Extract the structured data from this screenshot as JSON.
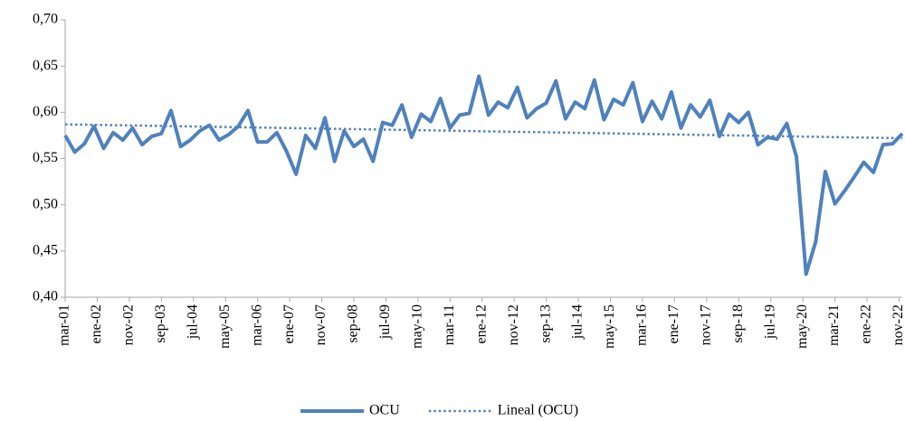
{
  "chart_data": {
    "type": "line",
    "ylim": [
      0.4,
      0.7
    ],
    "yticks": [
      {
        "value": 0.4,
        "label": "0,40"
      },
      {
        "value": 0.45,
        "label": "0,45"
      },
      {
        "value": 0.5,
        "label": "0,50"
      },
      {
        "value": 0.55,
        "label": "0,55"
      },
      {
        "value": 0.6,
        "label": "0,60"
      },
      {
        "value": 0.65,
        "label": "0,65"
      },
      {
        "value": 0.7,
        "label": "0,70"
      }
    ],
    "xlim": [
      "2001-03",
      "2022-12"
    ],
    "xticks": [
      {
        "value": "2001-03",
        "label": "mar-01"
      },
      {
        "value": "2002-01",
        "label": "ene-02"
      },
      {
        "value": "2002-11",
        "label": "nov-02"
      },
      {
        "value": "2003-09",
        "label": "sep-03"
      },
      {
        "value": "2004-07",
        "label": "jul-04"
      },
      {
        "value": "2005-05",
        "label": "may-05"
      },
      {
        "value": "2006-03",
        "label": "mar-06"
      },
      {
        "value": "2007-01",
        "label": "ene-07"
      },
      {
        "value": "2007-11",
        "label": "nov-07"
      },
      {
        "value": "2008-09",
        "label": "sep-08"
      },
      {
        "value": "2009-07",
        "label": "jul-09"
      },
      {
        "value": "2010-05",
        "label": "may-10"
      },
      {
        "value": "2011-03",
        "label": "mar-11"
      },
      {
        "value": "2012-01",
        "label": "ene-12"
      },
      {
        "value": "2012-11",
        "label": "nov-12"
      },
      {
        "value": "2013-09",
        "label": "sep-13"
      },
      {
        "value": "2014-07",
        "label": "jul-14"
      },
      {
        "value": "2015-05",
        "label": "may-15"
      },
      {
        "value": "2016-03",
        "label": "mar-16"
      },
      {
        "value": "2017-01",
        "label": "ene-17"
      },
      {
        "value": "2017-11",
        "label": "nov-17"
      },
      {
        "value": "2018-09",
        "label": "sep-18"
      },
      {
        "value": "2019-07",
        "label": "jul-19"
      },
      {
        "value": "2020-05",
        "label": "may-20"
      },
      {
        "value": "2021-03",
        "label": "mar-21"
      },
      {
        "value": "2022-01",
        "label": "ene-22"
      },
      {
        "value": "2022-11",
        "label": "nov-22"
      }
    ],
    "series": [
      {
        "name": "OCU",
        "color": "#4f81bd",
        "style": "solid",
        "x": [
          "2001-03",
          "2001-06",
          "2001-09",
          "2001-12",
          "2002-03",
          "2002-06",
          "2002-09",
          "2002-12",
          "2003-03",
          "2003-06",
          "2003-09",
          "2003-12",
          "2004-03",
          "2004-06",
          "2004-09",
          "2004-12",
          "2005-03",
          "2005-06",
          "2005-09",
          "2005-12",
          "2006-03",
          "2006-06",
          "2006-09",
          "2006-12",
          "2007-03",
          "2007-06",
          "2007-09",
          "2007-12",
          "2008-03",
          "2008-06",
          "2008-09",
          "2008-12",
          "2009-03",
          "2009-06",
          "2009-09",
          "2009-12",
          "2010-03",
          "2010-06",
          "2010-09",
          "2010-12",
          "2011-03",
          "2011-06",
          "2011-09",
          "2011-12",
          "2012-03",
          "2012-06",
          "2012-09",
          "2012-12",
          "2013-03",
          "2013-06",
          "2013-09",
          "2013-12",
          "2014-03",
          "2014-06",
          "2014-09",
          "2014-12",
          "2015-03",
          "2015-06",
          "2015-09",
          "2015-12",
          "2016-03",
          "2016-06",
          "2016-09",
          "2016-12",
          "2017-03",
          "2017-06",
          "2017-09",
          "2017-12",
          "2018-03",
          "2018-06",
          "2018-09",
          "2018-12",
          "2019-03",
          "2019-06",
          "2019-09",
          "2019-12",
          "2020-03",
          "2020-06",
          "2020-09",
          "2020-12",
          "2021-03",
          "2021-06",
          "2021-09",
          "2021-12",
          "2022-03",
          "2022-06",
          "2022-09",
          "2022-12"
        ],
        "values": [
          0.575,
          0.557,
          0.566,
          0.585,
          0.561,
          0.578,
          0.57,
          0.583,
          0.565,
          0.574,
          0.577,
          0.602,
          0.563,
          0.57,
          0.58,
          0.586,
          0.57,
          0.576,
          0.585,
          0.602,
          0.568,
          0.568,
          0.578,
          0.558,
          0.533,
          0.575,
          0.561,
          0.594,
          0.547,
          0.58,
          0.563,
          0.571,
          0.547,
          0.589,
          0.586,
          0.608,
          0.573,
          0.598,
          0.59,
          0.615,
          0.583,
          0.597,
          0.599,
          0.639,
          0.597,
          0.611,
          0.605,
          0.627,
          0.594,
          0.604,
          0.61,
          0.634,
          0.593,
          0.611,
          0.604,
          0.635,
          0.592,
          0.614,
          0.608,
          0.632,
          0.59,
          0.612,
          0.593,
          0.622,
          0.583,
          0.608,
          0.595,
          0.613,
          0.574,
          0.598,
          0.589,
          0.6,
          0.565,
          0.573,
          0.571,
          0.588,
          0.552,
          0.425,
          0.46,
          0.536,
          0.501,
          0.515,
          0.53,
          0.546,
          0.535,
          0.565,
          0.566,
          0.577
        ]
      },
      {
        "name": "Lineal (OCU)",
        "color": "#4f81bd",
        "style": "dotted",
        "x": [
          "2001-03",
          "2022-12"
        ],
        "values": [
          0.587,
          0.572
        ]
      }
    ]
  }
}
